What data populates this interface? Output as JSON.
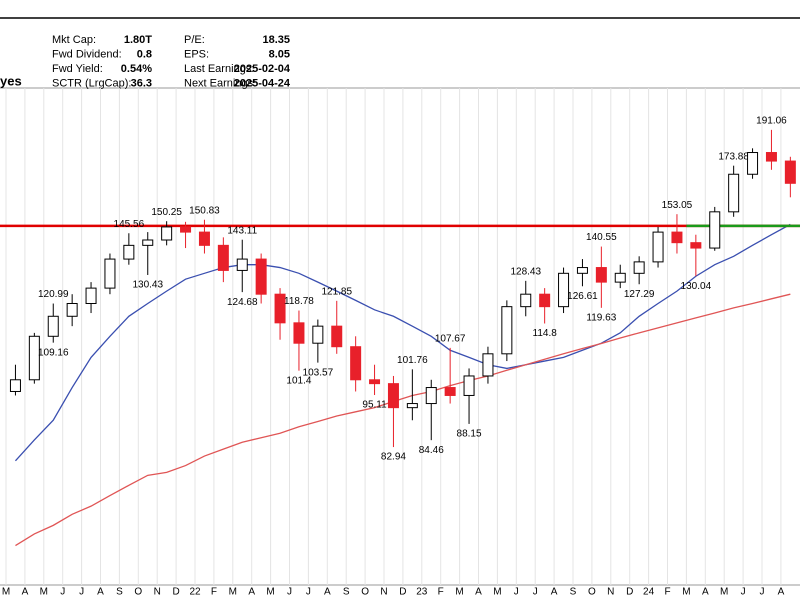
{
  "header": {
    "name": "yes",
    "stats": [
      {
        "label": "Mkt Cap:",
        "value": "1.80T"
      },
      {
        "label": "Fwd Dividend:",
        "value": "0.8"
      },
      {
        "label": "Fwd Yield:",
        "value": "0.54%"
      },
      {
        "label": "SCTR (LrgCap):",
        "value": "36.3"
      },
      {
        "label": "P/E:",
        "value": "18.35"
      },
      {
        "label": "EPS:",
        "value": "8.05"
      },
      {
        "label": "Last Earnings:",
        "value": "2025-02-04"
      },
      {
        "label": "Next Earnings:",
        "value": "2025-04-24"
      }
    ]
  },
  "chart_data": {
    "type": "candlestick",
    "log": true,
    "ylim": [
      57.7,
      213.3
    ],
    "up_color": "#000000",
    "down_color": "#e8202a",
    "grid": true,
    "categories": [
      "M",
      "A",
      "M",
      "J",
      "J",
      "A",
      "S",
      "O",
      "N",
      "D",
      "22",
      "F",
      "M",
      "A",
      "M",
      "J",
      "J",
      "A",
      "S",
      "O",
      "N",
      "D",
      "23",
      "F",
      "M",
      "A",
      "M",
      "J",
      "J",
      "A",
      "S",
      "O",
      "N",
      "D",
      "24",
      "F",
      "M",
      "A",
      "M",
      "J",
      "J",
      "A"
    ],
    "candles": [
      {
        "open": 96,
        "high": 103,
        "low": 95,
        "close": 99
      },
      {
        "open": 99,
        "high": 112,
        "low": 98,
        "close": 111
      },
      {
        "open": 111,
        "high": 120.99,
        "low": 109.16,
        "close": 117,
        "show": [
          "high",
          "low"
        ]
      },
      {
        "open": 117,
        "high": 124,
        "low": 114,
        "close": 121
      },
      {
        "open": 121,
        "high": 128,
        "low": 118,
        "close": 126
      },
      {
        "open": 126,
        "high": 138,
        "low": 124,
        "close": 136
      },
      {
        "open": 136,
        "high": 145.56,
        "low": 134,
        "close": 141,
        "show": [
          "high"
        ]
      },
      {
        "open": 141,
        "high": 146,
        "low": 130.43,
        "close": 143,
        "show": [
          "low"
        ]
      },
      {
        "open": 143,
        "high": 150.25,
        "low": 141,
        "close": 148,
        "show": [
          "high"
        ]
      },
      {
        "open": 148,
        "high": 150,
        "low": 140,
        "close": 146
      },
      {
        "open": 146,
        "high": 150.83,
        "low": 138,
        "close": 141,
        "show": [
          "high"
        ]
      },
      {
        "open": 141,
        "high": 144,
        "low": 128,
        "close": 132
      },
      {
        "open": 132,
        "high": 143.11,
        "low": 124.68,
        "close": 136,
        "show": [
          "high",
          "low"
        ]
      },
      {
        "open": 136,
        "high": 138,
        "low": 121,
        "close": 124
      },
      {
        "open": 124,
        "high": 126,
        "low": 110,
        "close": 115
      },
      {
        "open": 115,
        "high": 118.78,
        "low": 101.4,
        "close": 109,
        "show": [
          "high",
          "low"
        ]
      },
      {
        "open": 109,
        "high": 116,
        "low": 103.57,
        "close": 114,
        "show": [
          "low"
        ]
      },
      {
        "open": 114,
        "high": 121.85,
        "low": 106,
        "close": 108,
        "show": [
          "high"
        ]
      },
      {
        "open": 108,
        "high": 111,
        "low": 96,
        "close": 99
      },
      {
        "open": 99,
        "high": 103,
        "low": 95.11,
        "close": 98,
        "show": [
          "low"
        ]
      },
      {
        "open": 98,
        "high": 100,
        "low": 82.94,
        "close": 92,
        "show": [
          "low"
        ]
      },
      {
        "open": 92,
        "high": 101.76,
        "low": 89,
        "close": 93,
        "show": [
          "high"
        ]
      },
      {
        "open": 93,
        "high": 99,
        "low": 84.46,
        "close": 97,
        "show": [
          "low"
        ]
      },
      {
        "open": 97,
        "high": 107.67,
        "low": 93,
        "close": 95,
        "show": [
          "high"
        ]
      },
      {
        "open": 95,
        "high": 102,
        "low": 88.15,
        "close": 100,
        "show": [
          "low"
        ]
      },
      {
        "open": 100,
        "high": 108,
        "low": 98,
        "close": 106
      },
      {
        "open": 106,
        "high": 122,
        "low": 104,
        "close": 120
      },
      {
        "open": 120,
        "high": 128.43,
        "low": 117,
        "close": 124,
        "show": [
          "high"
        ]
      },
      {
        "open": 124,
        "high": 126,
        "low": 114.8,
        "close": 120,
        "show": [
          "low"
        ]
      },
      {
        "open": 120,
        "high": 133,
        "low": 118,
        "close": 131
      },
      {
        "open": 131,
        "high": 136,
        "low": 126.61,
        "close": 133,
        "show": [
          "low"
        ]
      },
      {
        "open": 133,
        "high": 140.55,
        "low": 119.63,
        "close": 128,
        "show": [
          "high",
          "low"
        ]
      },
      {
        "open": 128,
        "high": 134,
        "low": 126,
        "close": 131
      },
      {
        "open": 131,
        "high": 137,
        "low": 127.29,
        "close": 135,
        "show": [
          "low"
        ]
      },
      {
        "open": 135,
        "high": 148,
        "low": 133,
        "close": 146
      },
      {
        "open": 146,
        "high": 153.05,
        "low": 138,
        "close": 142,
        "show": [
          "high"
        ]
      },
      {
        "open": 142,
        "high": 145,
        "low": 130.04,
        "close": 140,
        "show": [
          "low"
        ]
      },
      {
        "open": 140,
        "high": 156,
        "low": 139,
        "close": 154
      },
      {
        "open": 154,
        "high": 173.88,
        "low": 152,
        "close": 170,
        "show": [
          "high"
        ]
      },
      {
        "open": 170,
        "high": 182,
        "low": 168,
        "close": 180
      },
      {
        "open": 180,
        "high": 191.06,
        "low": 172,
        "close": 176,
        "show": [
          "high"
        ]
      },
      {
        "open": 176,
        "high": 178,
        "low": 160,
        "close": 166
      }
    ],
    "lines": [
      {
        "color": "#3a4fb0",
        "values": [
          80,
          84.5,
          89,
          97,
          105,
          111,
          117,
          121,
          125,
          129,
          131,
          133,
          134,
          134,
          133,
          131,
          128,
          125,
          122,
          119,
          117,
          114,
          111,
          107,
          105,
          103,
          102,
          103,
          104,
          105,
          107,
          109,
          112,
          117,
          121,
          125,
          130,
          134,
          137,
          141,
          145,
          149
        ]
      },
      {
        "color": "#e05555",
        "values": [
          64,
          66,
          67.5,
          69.5,
          71,
          73,
          75,
          77,
          77.6,
          79,
          81,
          82.5,
          84,
          85,
          86,
          87.5,
          88.7,
          90,
          91,
          92,
          93.5,
          95,
          96,
          97.5,
          98.8,
          100,
          101.5,
          103,
          104.5,
          106,
          107.5,
          108.9,
          110.5,
          112,
          113.5,
          115,
          116.5,
          118,
          119.6,
          121,
          122.5,
          124
        ]
      }
    ],
    "levels": [
      {
        "value": 148.4,
        "color": "#e00000"
      },
      {
        "value": 148.4,
        "color": "#1a9a1a",
        "from": 36
      }
    ]
  }
}
